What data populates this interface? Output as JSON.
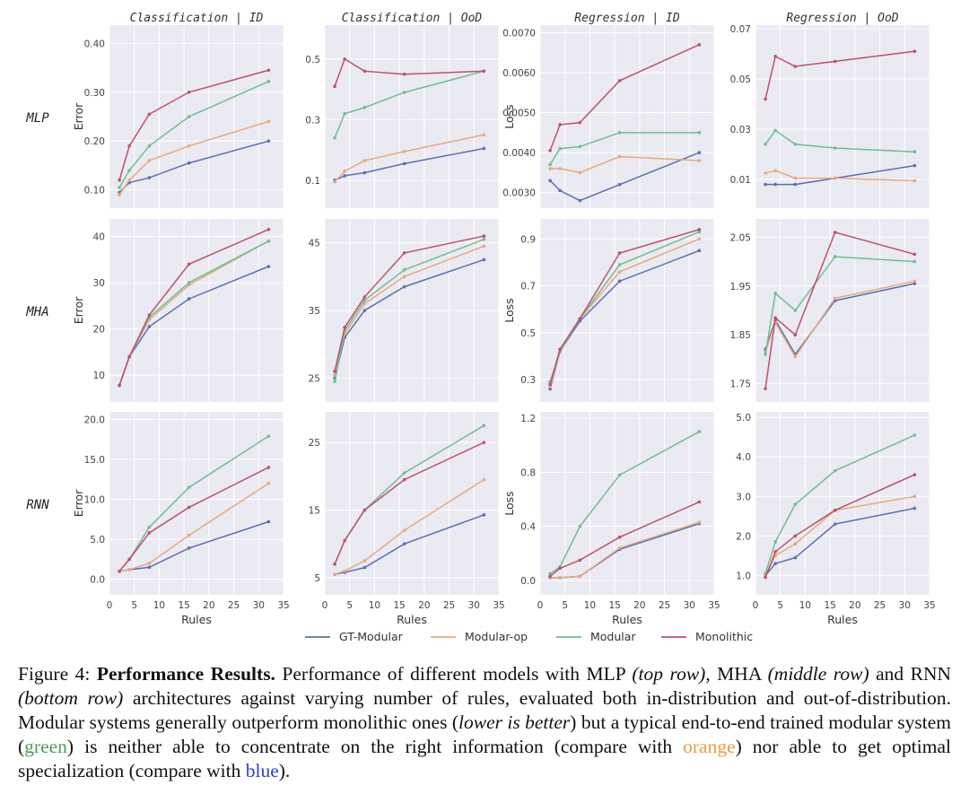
{
  "chart_data": {
    "type": "line",
    "columns": [
      "Classification | ID",
      "Classification | OoD",
      "Regression | ID",
      "Regression | OoD"
    ],
    "rows": [
      "MLP",
      "MHA",
      "RNN"
    ],
    "xlabel": "Rules",
    "xlim": [
      0,
      35
    ],
    "xticks": [
      "0",
      "5",
      "10",
      "15",
      "20",
      "25",
      "30",
      "35"
    ],
    "x": [
      2,
      4,
      8,
      16,
      32
    ],
    "legend": [
      {
        "name": "GT-Modular",
        "color": "#5b6fb5"
      },
      {
        "name": "Modular-op",
        "color": "#e8a97d"
      },
      {
        "name": "Modular",
        "color": "#6fbf8f"
      },
      {
        "name": "Monolithic",
        "color": "#c0506a"
      }
    ],
    "panels": [
      {
        "name": "mlp-class-id",
        "ylabel": "Error",
        "ylim": [
          0.07,
          0.43
        ],
        "yticks": [
          0.1,
          0.2,
          0.3,
          0.4
        ],
        "ytick_labels": [
          "0.10",
          "0.20",
          "0.30",
          "0.40"
        ],
        "series": [
          [
            0.095,
            0.115,
            0.125,
            0.155,
            0.2
          ],
          [
            0.09,
            0.12,
            0.16,
            0.19,
            0.24
          ],
          [
            0.105,
            0.14,
            0.19,
            0.25,
            0.322
          ],
          [
            0.12,
            0.19,
            0.255,
            0.3,
            0.345
          ]
        ]
      },
      {
        "name": "mlp-class-ood",
        "ylabel": "",
        "ylim": [
          0.02,
          0.6
        ],
        "yticks": [
          0.1,
          0.3,
          0.5
        ],
        "ytick_labels": [
          "0.1",
          "0.3",
          "0.5"
        ],
        "series": [
          [
            0.1,
            0.115,
            0.125,
            0.155,
            0.205
          ],
          [
            0.095,
            0.13,
            0.165,
            0.195,
            0.25
          ],
          [
            0.24,
            0.32,
            0.34,
            0.39,
            0.46
          ],
          [
            0.41,
            0.5,
            0.46,
            0.45,
            0.46
          ]
        ]
      },
      {
        "name": "mlp-reg-id",
        "ylabel": "Loss",
        "ylim": [
          0.0027,
          0.0071
        ],
        "yticks": [
          0.003,
          0.004,
          0.005,
          0.006,
          0.007
        ],
        "ytick_labels": [
          "0.0030",
          "0.0040",
          "0.0050",
          "0.0060",
          "0.0070"
        ],
        "series": [
          [
            0.0033,
            0.00305,
            0.0028,
            0.0032,
            0.004
          ],
          [
            0.0036,
            0.0036,
            0.0035,
            0.0039,
            0.0038
          ],
          [
            0.0037,
            0.0041,
            0.00415,
            0.0045,
            0.0045
          ],
          [
            0.00405,
            0.0047,
            0.00475,
            0.0058,
            0.0067
          ]
        ]
      },
      {
        "name": "mlp-reg-ood",
        "ylabel": "",
        "ylim": [
          0.0,
          0.07
        ],
        "yticks": [
          0.01,
          0.03,
          0.05,
          0.07
        ],
        "ytick_labels": [
          "0.01",
          "0.03",
          "0.05",
          "0.07"
        ],
        "series": [
          [
            0.008,
            0.008,
            0.008,
            0.0105,
            0.0155
          ],
          [
            0.0125,
            0.0135,
            0.0105,
            0.0105,
            0.0095
          ],
          [
            0.024,
            0.0295,
            0.024,
            0.0225,
            0.021
          ],
          [
            0.042,
            0.059,
            0.055,
            0.057,
            0.061
          ]
        ]
      },
      {
        "name": "mha-class-id",
        "ylabel": "Error",
        "ylim": [
          5,
          43
        ],
        "yticks": [
          10,
          20,
          30,
          40
        ],
        "ytick_labels": [
          "10",
          "20",
          "30",
          "40"
        ],
        "series": [
          [
            7.8,
            14,
            20.5,
            26.5,
            33.5
          ],
          [
            7.8,
            14,
            22,
            29.5,
            39
          ],
          [
            7.8,
            14,
            22.5,
            30,
            39
          ],
          [
            7.8,
            14,
            23,
            34,
            41.5
          ]
        ]
      },
      {
        "name": "mha-class-ood",
        "ylabel": "",
        "ylim": [
          22,
          48
        ],
        "yticks": [
          25,
          35,
          45
        ],
        "ytick_labels": [
          "25",
          "35",
          "45"
        ],
        "series": [
          [
            25,
            31,
            35,
            38.5,
            42.5
          ],
          [
            25.5,
            31.5,
            36,
            40,
            44.5
          ],
          [
            24.5,
            32,
            36.5,
            41,
            45.5
          ],
          [
            26,
            32.5,
            37,
            43.5,
            46
          ]
        ]
      },
      {
        "name": "mha-reg-id",
        "ylabel": "Loss",
        "ylim": [
          0.22,
          0.97
        ],
        "yticks": [
          0.3,
          0.5,
          0.7,
          0.9
        ],
        "ytick_labels": [
          "0.3",
          "0.5",
          "0.7",
          "0.9"
        ],
        "series": [
          [
            0.26,
            0.42,
            0.55,
            0.72,
            0.85
          ],
          [
            0.27,
            0.42,
            0.56,
            0.76,
            0.9
          ],
          [
            0.29,
            0.42,
            0.56,
            0.79,
            0.93
          ],
          [
            0.28,
            0.43,
            0.56,
            0.84,
            0.94
          ]
        ]
      },
      {
        "name": "mha-reg-ood",
        "ylabel": "",
        "ylim": [
          1.72,
          2.08
        ],
        "yticks": [
          1.75,
          1.85,
          1.95,
          2.05
        ],
        "ytick_labels": [
          "1.75",
          "1.85",
          "1.95",
          "2.05"
        ],
        "series": [
          [
            1.82,
            1.88,
            1.81,
            1.92,
            1.955
          ],
          [
            1.815,
            1.875,
            1.805,
            1.925,
            1.96
          ],
          [
            1.81,
            1.935,
            1.9,
            2.01,
            2.0
          ],
          [
            1.74,
            1.885,
            1.85,
            2.06,
            2.015
          ]
        ]
      },
      {
        "name": "rnn-class-id",
        "ylabel": "Error",
        "ylim": [
          -1.5,
          20.5
        ],
        "yticks": [
          0,
          5,
          10,
          15,
          20
        ],
        "ytick_labels": [
          "0.0",
          "5.0",
          "10.0",
          "15.0",
          "20.0"
        ],
        "series": [
          [
            1.0,
            1.2,
            1.5,
            3.9,
            7.2
          ],
          [
            1.0,
            1.2,
            2.0,
            5.5,
            12.0
          ],
          [
            1.0,
            2.5,
            6.5,
            11.5,
            17.9
          ],
          [
            1.0,
            2.5,
            5.8,
            9.0,
            14.0
          ]
        ]
      },
      {
        "name": "rnn-class-ood",
        "ylabel": "",
        "ylim": [
          3,
          29
        ],
        "yticks": [
          5,
          15,
          25
        ],
        "ytick_labels": [
          "5",
          "15",
          "25"
        ],
        "series": [
          [
            5.5,
            5.8,
            6.5,
            10,
            14.3
          ],
          [
            5.5,
            6,
            7.5,
            12,
            19.5
          ],
          [
            7,
            10.5,
            15,
            20.5,
            27.5
          ],
          [
            7,
            10.5,
            15,
            19.5,
            25
          ]
        ]
      },
      {
        "name": "rnn-reg-id",
        "ylabel": "Loss",
        "ylim": [
          -0.08,
          1.22
        ],
        "yticks": [
          0.0,
          0.4,
          0.8,
          1.2
        ],
        "ytick_labels": [
          "0.0",
          "0.4",
          "0.8",
          "1.2"
        ],
        "series": [
          [
            0.02,
            0.02,
            0.03,
            0.23,
            0.42
          ],
          [
            0.02,
            0.02,
            0.03,
            0.24,
            0.43
          ],
          [
            0.05,
            0.1,
            0.4,
            0.78,
            1.1
          ],
          [
            0.03,
            0.09,
            0.15,
            0.32,
            0.58
          ]
        ]
      },
      {
        "name": "rnn-reg-ood",
        "ylabel": "",
        "ylim": [
          0.6,
          5.05
        ],
        "yticks": [
          1.0,
          2.0,
          3.0,
          4.0,
          5.0
        ],
        "ytick_labels": [
          "1.0",
          "2.0",
          "3.0",
          "4.0",
          "5.0"
        ],
        "series": [
          [
            1.0,
            1.3,
            1.45,
            2.3,
            2.7
          ],
          [
            1.0,
            1.5,
            1.8,
            2.65,
            3.0
          ],
          [
            1.05,
            1.85,
            2.8,
            3.65,
            4.55
          ],
          [
            0.95,
            1.6,
            2.0,
            2.65,
            3.55
          ]
        ]
      }
    ]
  },
  "caption": {
    "prefix": "Figure 4: ",
    "title": "Performance Results.",
    "t1": " Performance of different models with MLP ",
    "i1": "(top row)",
    "t2": ", MHA ",
    "i2": "(middle row)",
    "t3": " and RNN ",
    "i3": "(bottom row)",
    "t4": " architectures against varying number of rules, evaluated both in-distribution and out-of-distribution. Modular systems generally outperform monolithic ones (",
    "i4": "lower is better",
    "t5": ") but a typical end-to-end trained modular system (",
    "green": "green",
    "t6": ") is neither able to concentrate on the right information (compare with ",
    "orange": "orange",
    "t7": ") nor able to get optimal specialization (compare with ",
    "blue": "blue",
    "t8": ")."
  }
}
